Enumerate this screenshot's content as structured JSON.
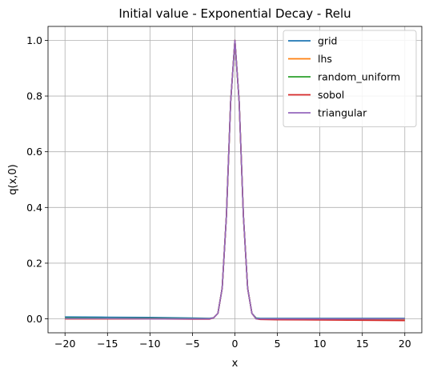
{
  "chart_data": {
    "type": "line",
    "title": "Initial value - Exponential Decay - Relu",
    "xlabel": "x",
    "ylabel": "q(x,0)",
    "xlim": [
      -22,
      22
    ],
    "ylim": [
      -0.05,
      1.05
    ],
    "xticks": [
      -20,
      -15,
      -10,
      -5,
      0,
      5,
      10,
      15,
      20
    ],
    "xtick_labels": [
      "−20",
      "−15",
      "−10",
      "−5",
      "0",
      "5",
      "10",
      "15",
      "20"
    ],
    "yticks": [
      0.0,
      0.2,
      0.4,
      0.6,
      0.8,
      1.0
    ],
    "ytick_labels": [
      "0.0",
      "0.2",
      "0.4",
      "0.6",
      "0.8",
      "1.0"
    ],
    "grid": true,
    "legend_position": "top-right",
    "x": [
      -20,
      -15,
      -10,
      -5,
      -3,
      -2.5,
      -2,
      -1.5,
      -1,
      -0.5,
      0,
      0.5,
      1,
      1.5,
      2,
      2.5,
      3,
      5,
      10,
      15,
      20
    ],
    "series": [
      {
        "name": "grid",
        "color": "#1f77b4",
        "values": [
          0.007,
          0.006,
          0.005,
          0.003,
          0.002,
          0.004,
          0.02,
          0.11,
          0.37,
          0.78,
          1.0,
          0.78,
          0.37,
          0.11,
          0.02,
          0.003,
          0.002,
          0.002,
          0.002,
          0.002,
          0.002
        ]
      },
      {
        "name": "lhs",
        "color": "#ff7f0e",
        "values": [
          0.0,
          0.0,
          0.0,
          0.0,
          0.0,
          0.004,
          0.02,
          0.11,
          0.37,
          0.78,
          1.0,
          0.78,
          0.37,
          0.11,
          0.02,
          0.0,
          -0.001,
          -0.002,
          -0.002,
          -0.003,
          -0.003
        ]
      },
      {
        "name": "random_uniform",
        "color": "#2ca02c",
        "values": [
          0.003,
          0.002,
          0.002,
          0.001,
          0.0,
          0.004,
          0.02,
          0.11,
          0.37,
          0.78,
          1.0,
          0.78,
          0.37,
          0.11,
          0.02,
          0.002,
          0.0,
          0.0,
          0.0,
          0.0,
          0.0
        ]
      },
      {
        "name": "sobol",
        "color": "#d62728",
        "values": [
          0.0,
          0.0,
          0.0,
          -0.001,
          -0.001,
          0.004,
          0.02,
          0.11,
          0.37,
          0.78,
          1.0,
          0.78,
          0.37,
          0.11,
          0.02,
          0.0,
          -0.002,
          -0.003,
          -0.004,
          -0.005,
          -0.006
        ]
      },
      {
        "name": "triangular",
        "color": "#9467bd",
        "values": [
          0.001,
          0.001,
          0.0,
          0.0,
          0.0,
          0.004,
          0.02,
          0.11,
          0.37,
          0.78,
          1.0,
          0.78,
          0.37,
          0.11,
          0.02,
          0.0,
          0.0,
          0.0,
          0.0,
          0.0,
          0.0
        ]
      }
    ]
  }
}
